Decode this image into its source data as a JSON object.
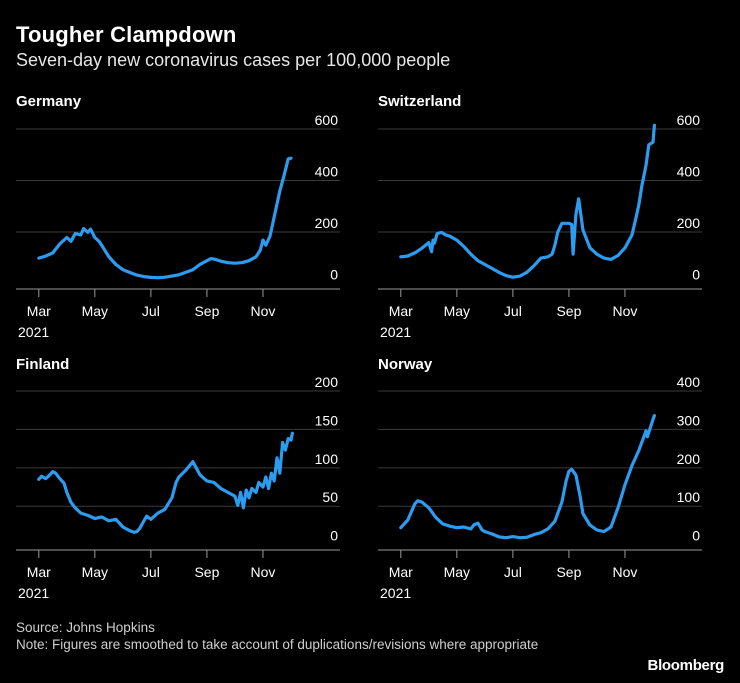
{
  "header": {
    "title": "Tougher Clampdown",
    "subtitle": "Seven-day new coronavirus cases per 100,000 people"
  },
  "footer": {
    "source": "Source: Johns Hopkins",
    "note": "Note: Figures are smoothed to take account of duplications/revisions where appropriate",
    "brand": "Bloomberg"
  },
  "colors": {
    "line": "#2c9cf0",
    "axis": "#9a9a9a",
    "grid": "#3a3a3a",
    "text": "#ffffff"
  },
  "chart_data": [
    {
      "type": "line",
      "title": "Germany",
      "xlabel": "",
      "ylabel": "",
      "x_ticks": [
        "Mar",
        "May",
        "Jul",
        "Sep",
        "Nov"
      ],
      "x_tick_months": [
        0,
        2,
        4,
        6,
        8
      ],
      "x_year_label": "2021",
      "y_ticks": [
        0,
        200,
        400,
        600
      ],
      "ylim": [
        -60,
        600
      ],
      "xlim": [
        -0.1,
        9.5
      ],
      "series": [
        {
          "name": "Germany",
          "x": [
            0,
            0.25,
            0.5,
            0.75,
            1.0,
            1.15,
            1.3,
            1.5,
            1.6,
            1.75,
            1.85,
            2.0,
            2.15,
            2.3,
            2.5,
            2.75,
            3.0,
            3.25,
            3.5,
            3.75,
            4.0,
            4.25,
            4.5,
            4.75,
            5.0,
            5.25,
            5.5,
            5.75,
            6.0,
            6.15,
            6.3,
            6.5,
            6.75,
            7.0,
            7.25,
            7.5,
            7.75,
            7.9,
            8.0,
            8.1,
            8.25,
            8.4,
            8.5,
            8.6,
            8.75,
            8.9,
            9.0
          ],
          "values": [
            60,
            68,
            80,
            115,
            140,
            125,
            155,
            150,
            175,
            160,
            172,
            140,
            125,
            100,
            65,
            35,
            15,
            4,
            -6,
            -12,
            -15,
            -16,
            -14,
            -10,
            -5,
            5,
            15,
            35,
            50,
            58,
            55,
            48,
            42,
            40,
            42,
            50,
            65,
            90,
            130,
            110,
            145,
            220,
            270,
            320,
            380,
            445,
            448
          ]
        }
      ]
    },
    {
      "type": "line",
      "title": "Switzerland",
      "xlabel": "",
      "ylabel": "",
      "x_ticks": [
        "Mar",
        "May",
        "Jul",
        "Sep",
        "Nov"
      ],
      "x_tick_months": [
        0,
        2,
        4,
        6,
        8
      ],
      "x_year_label": "2021",
      "y_ticks": [
        0,
        200,
        400,
        600
      ],
      "ylim": [
        -60,
        600
      ],
      "xlim": [
        -0.1,
        9.5
      ],
      "series": [
        {
          "name": "Switzerland",
          "x": [
            0,
            0.25,
            0.5,
            0.75,
            1.0,
            1.1,
            1.15,
            1.2,
            1.3,
            1.45,
            1.6,
            1.75,
            2.0,
            2.25,
            2.5,
            2.75,
            3.0,
            3.25,
            3.5,
            3.75,
            4.0,
            4.25,
            4.5,
            4.75,
            5.0,
            5.25,
            5.4,
            5.5,
            5.6,
            5.75,
            6.0,
            6.1,
            6.15,
            6.25,
            6.35,
            6.5,
            6.75,
            7.0,
            7.25,
            7.5,
            7.75,
            8.0,
            8.25,
            8.4,
            8.5,
            8.6,
            8.75,
            8.85,
            9.0,
            9.05
          ],
          "values": [
            65,
            68,
            80,
            98,
            120,
            85,
            130,
            118,
            155,
            160,
            150,
            145,
            130,
            105,
            75,
            50,
            35,
            20,
            5,
            -8,
            -14,
            -10,
            5,
            30,
            60,
            65,
            75,
            110,
            160,
            195,
            195,
            190,
            75,
            230,
            290,
            170,
            100,
            75,
            60,
            55,
            70,
            100,
            150,
            220,
            270,
            340,
            420,
            500,
            510,
            575
          ]
        }
      ]
    },
    {
      "type": "line",
      "title": "Finland",
      "xlabel": "",
      "ylabel": "",
      "x_ticks": [
        "Mar",
        "May",
        "Jul",
        "Sep",
        "Nov"
      ],
      "x_tick_months": [
        0,
        2,
        4,
        6,
        8
      ],
      "x_year_label": "2021",
      "y_ticks": [
        0,
        50,
        100,
        150,
        200
      ],
      "ylim": [
        -20,
        200
      ],
      "xlim": [
        -0.1,
        9.5
      ],
      "series": [
        {
          "name": "Finland",
          "x": [
            0,
            0.1,
            0.25,
            0.4,
            0.5,
            0.6,
            0.75,
            0.9,
            1.0,
            1.15,
            1.3,
            1.5,
            1.75,
            2.0,
            2.25,
            2.5,
            2.75,
            3.0,
            3.25,
            3.4,
            3.5,
            3.6,
            3.75,
            3.85,
            4.0,
            4.25,
            4.5,
            4.75,
            4.9,
            5.0,
            5.25,
            5.5,
            5.75,
            5.9,
            6.0,
            6.25,
            6.5,
            6.75,
            7.0,
            7.1,
            7.2,
            7.3,
            7.4,
            7.5,
            7.6,
            7.75,
            7.85,
            8.0,
            8.1,
            8.2,
            8.3,
            8.4,
            8.5,
            8.6,
            8.7,
            8.8,
            8.9,
            9.0,
            9.05
          ],
          "values": [
            72,
            76,
            73,
            78,
            82,
            80,
            73,
            67,
            55,
            42,
            35,
            28,
            25,
            21,
            23,
            18,
            20,
            10,
            5,
            3,
            4,
            8,
            18,
            24,
            20,
            28,
            33,
            48,
            68,
            75,
            84,
            95,
            78,
            73,
            70,
            68,
            60,
            55,
            50,
            38,
            55,
            35,
            58,
            48,
            60,
            55,
            68,
            62,
            75,
            60,
            80,
            70,
            100,
            80,
            120,
            110,
            125,
            123,
            132
          ]
        }
      ]
    },
    {
      "type": "line",
      "title": "Norway",
      "xlabel": "",
      "ylabel": "",
      "x_ticks": [
        "Mar",
        "May",
        "Jul",
        "Sep",
        "Nov"
      ],
      "x_tick_months": [
        0,
        2,
        4,
        6,
        8
      ],
      "x_year_label": "2021",
      "y_ticks": [
        0,
        100,
        200,
        300,
        400
      ],
      "ylim": [
        -40,
        400
      ],
      "xlim": [
        -0.1,
        9.5
      ],
      "series": [
        {
          "name": "Norway",
          "x": [
            0,
            0.25,
            0.5,
            0.6,
            0.75,
            1.0,
            1.25,
            1.5,
            1.75,
            2.0,
            2.25,
            2.5,
            2.6,
            2.75,
            2.9,
            3.0,
            3.25,
            3.5,
            3.75,
            4.0,
            4.25,
            4.5,
            4.75,
            5.0,
            5.25,
            5.5,
            5.75,
            5.9,
            6.0,
            6.1,
            6.25,
            6.4,
            6.5,
            6.75,
            7.0,
            7.25,
            7.5,
            7.75,
            8.0,
            8.25,
            8.5,
            8.75,
            8.8,
            9.0,
            9.05
          ],
          "values": [
            18,
            38,
            80,
            88,
            85,
            70,
            45,
            28,
            22,
            18,
            20,
            15,
            25,
            30,
            12,
            8,
            2,
            -6,
            -8,
            -5,
            -8,
            -7,
            0,
            5,
            15,
            35,
            85,
            140,
            165,
            170,
            155,
            100,
            55,
            25,
            12,
            8,
            20,
            70,
            130,
            180,
            220,
            270,
            255,
            300,
            310
          ]
        }
      ]
    }
  ]
}
